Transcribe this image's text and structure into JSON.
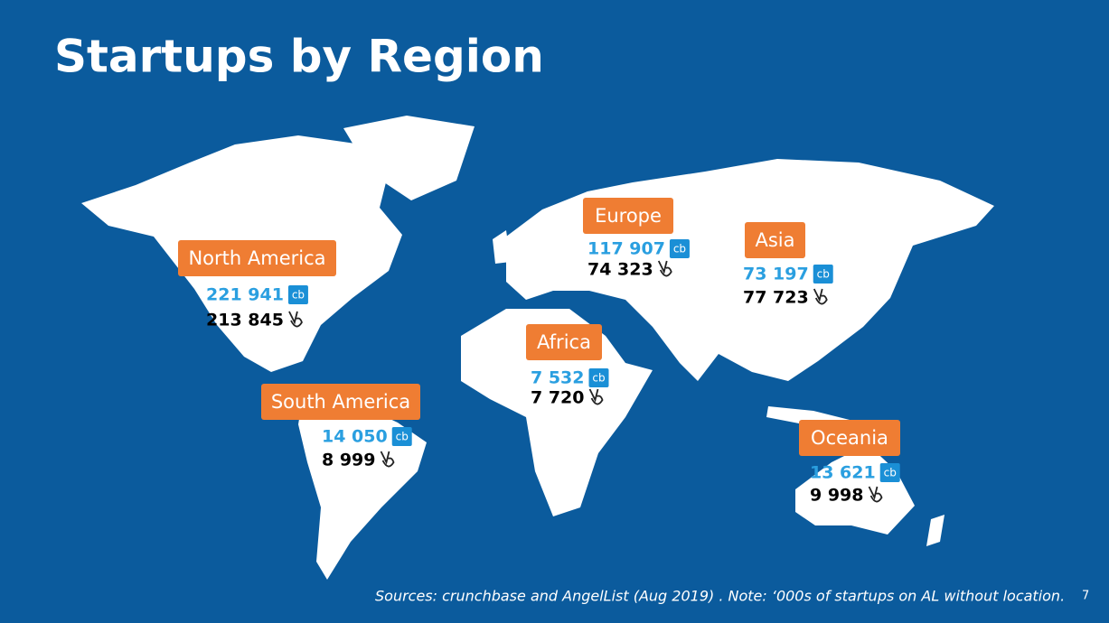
{
  "title": "Startups by Region",
  "icon_label": "cb",
  "regions": [
    {
      "name": "North America",
      "crunchbase": "221 941",
      "angellist": "213 845"
    },
    {
      "name": "South America",
      "crunchbase": "14 050",
      "angellist": "8 999"
    },
    {
      "name": "Europe",
      "crunchbase": "117 907",
      "angellist": "74 323"
    },
    {
      "name": "Africa",
      "crunchbase": "7 532",
      "angellist": "7 720"
    },
    {
      "name": "Asia",
      "crunchbase": "73 197",
      "angellist": "77 723"
    },
    {
      "name": "Oceania",
      "crunchbase": "13 621",
      "angellist": "9 998"
    }
  ],
  "footnote": "Sources: crunchbase and AngelList (Aug 2019) . Note: ‘000s of startups on AL without location.",
  "page_number": "7"
}
